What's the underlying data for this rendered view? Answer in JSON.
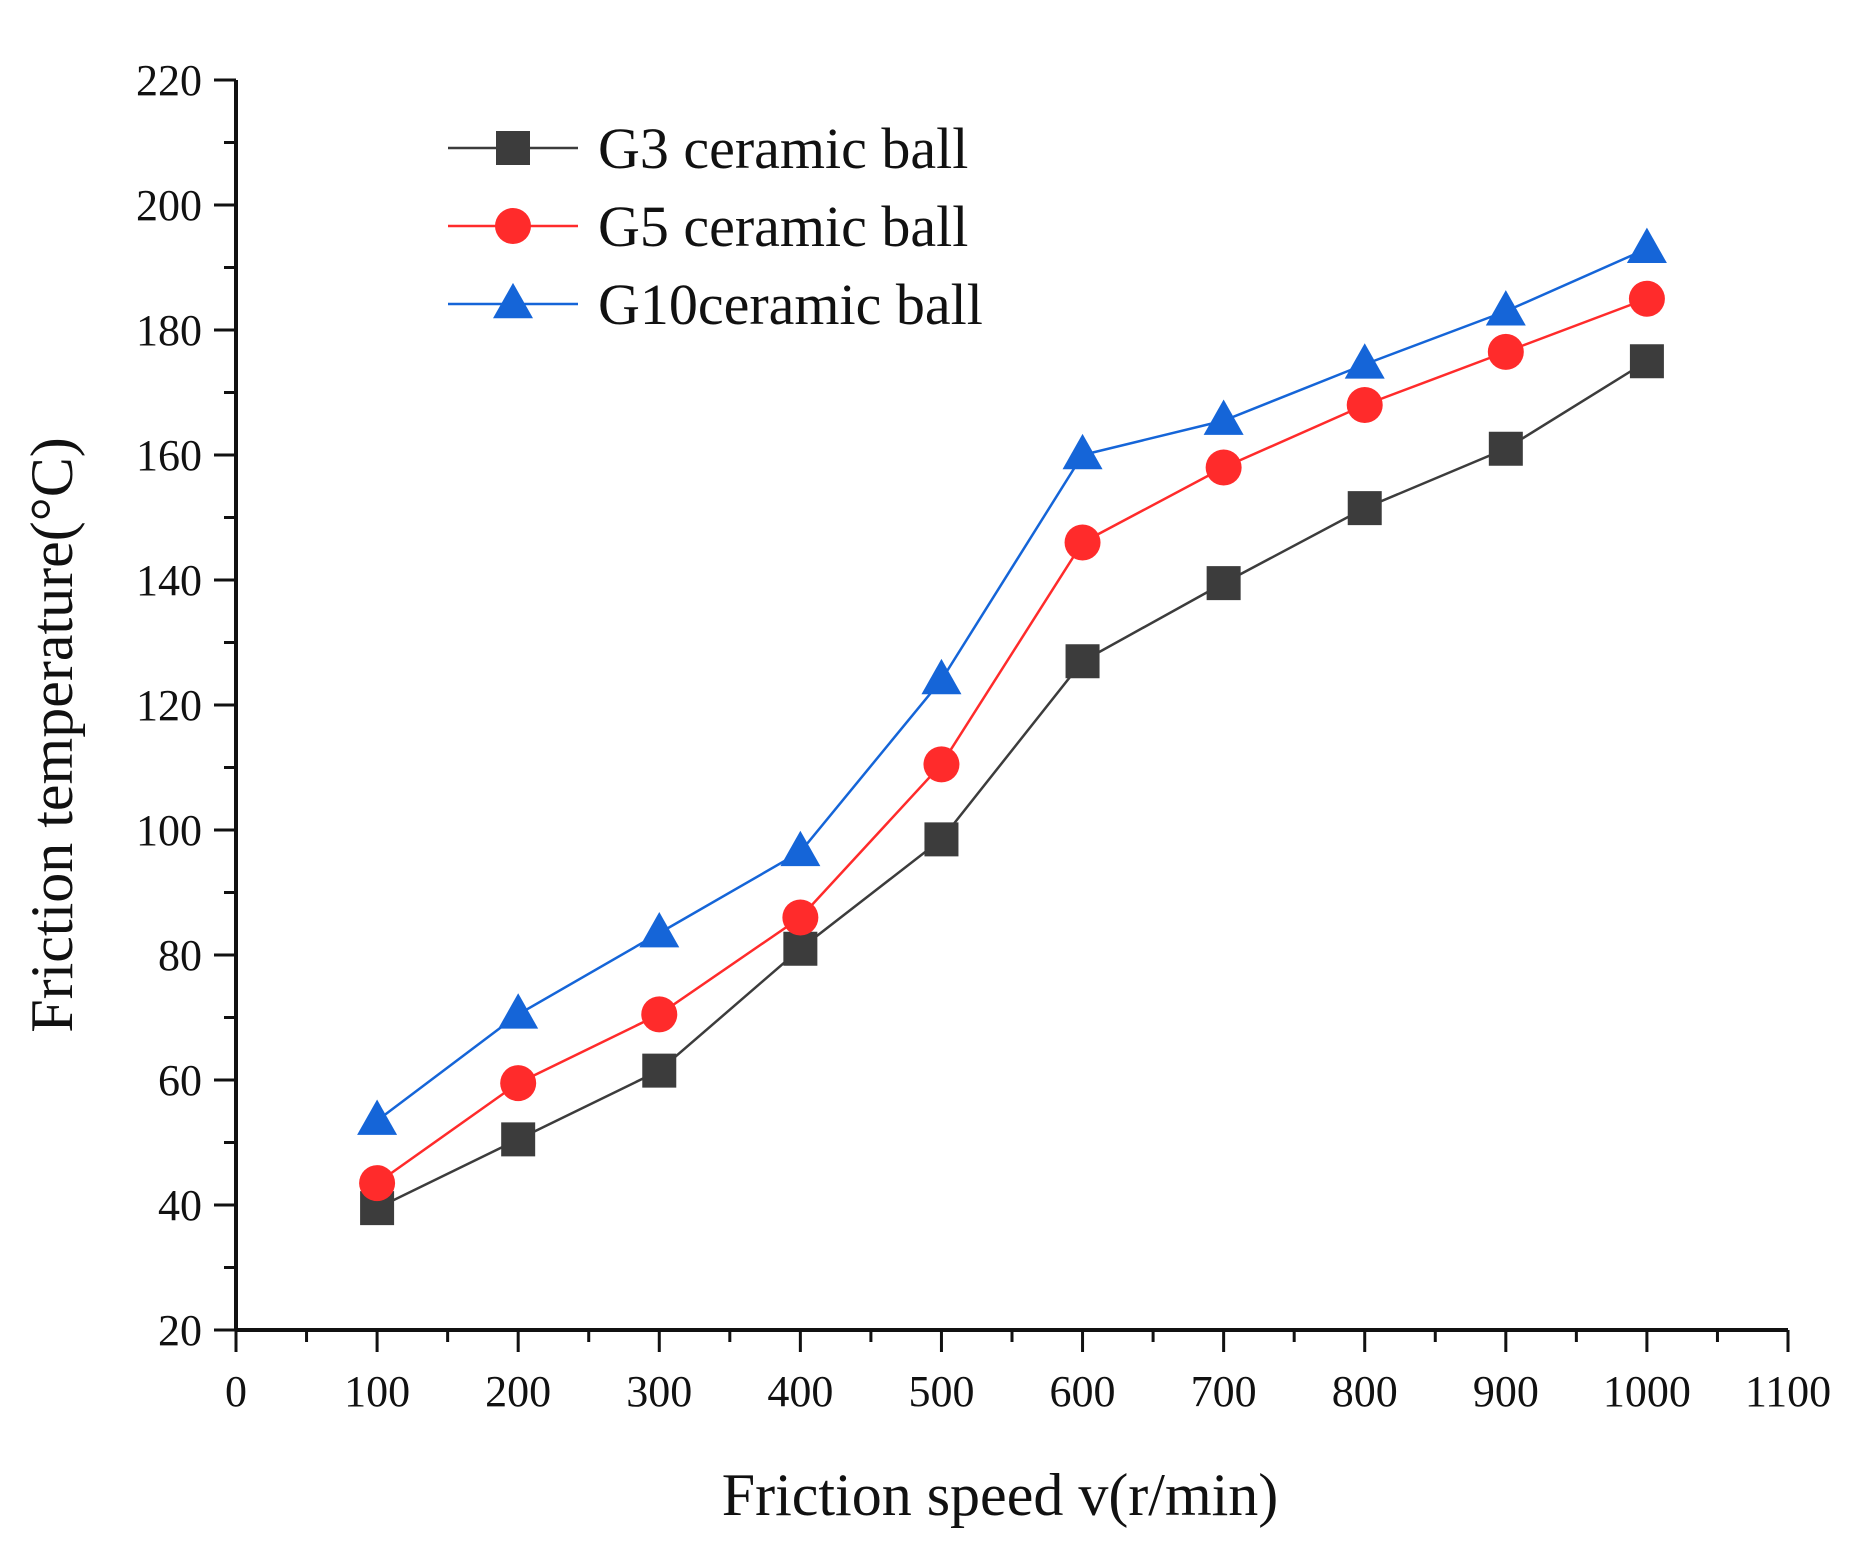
{
  "chart_data": {
    "type": "line",
    "title": "",
    "xlabel": "Friction speed v(r/min)",
    "ylabel": "Friction temperature(°C)",
    "xlim": [
      0,
      1100
    ],
    "ylim": [
      20,
      220
    ],
    "xticks": [
      0,
      100,
      200,
      300,
      400,
      500,
      600,
      700,
      800,
      900,
      1000,
      1100
    ],
    "yticks": [
      20,
      40,
      60,
      80,
      100,
      120,
      140,
      160,
      180,
      200,
      220
    ],
    "grid": false,
    "legend_position": "top-left",
    "x": [
      100,
      200,
      300,
      400,
      500,
      600,
      700,
      800,
      900,
      1000
    ],
    "series": [
      {
        "name": "G3 ceramic ball",
        "color": "#3c3c3c",
        "marker": "square",
        "values": [
          39.5,
          50.5,
          61.5,
          81,
          98.5,
          127,
          139.5,
          151.5,
          161,
          175
        ]
      },
      {
        "name": "G5 ceramic ball",
        "color": "#ff2b2b",
        "marker": "circle",
        "values": [
          43.5,
          59.5,
          70.5,
          86,
          110.5,
          146,
          158,
          168,
          176.5,
          185
        ]
      },
      {
        "name": "G10ceramic ball",
        "color": "#1565d8",
        "marker": "triangle",
        "values": [
          53.5,
          70.5,
          83.5,
          96.5,
          124,
          160,
          165.5,
          174.5,
          183,
          193
        ]
      }
    ]
  }
}
